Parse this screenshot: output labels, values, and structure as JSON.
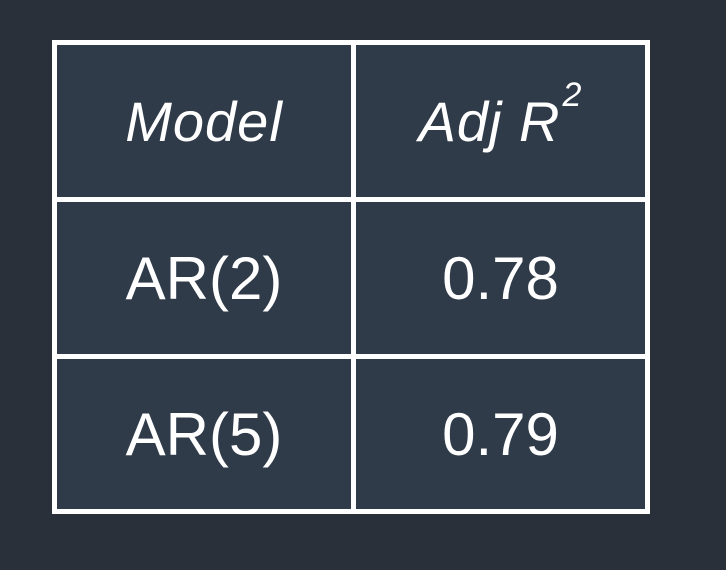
{
  "table": {
    "headers": {
      "model": "Model",
      "adj_r2_base": "Adj R",
      "adj_r2_superscript": "2"
    },
    "rows": [
      {
        "model": "AR(2)",
        "adj_r2": "0.78"
      },
      {
        "model": "AR(5)",
        "adj_r2": "0.79"
      }
    ]
  },
  "colors": {
    "page_background": "#293039",
    "cell_background": "#303b49",
    "grid_lines": "#ffffff",
    "text": "#ffffff"
  }
}
